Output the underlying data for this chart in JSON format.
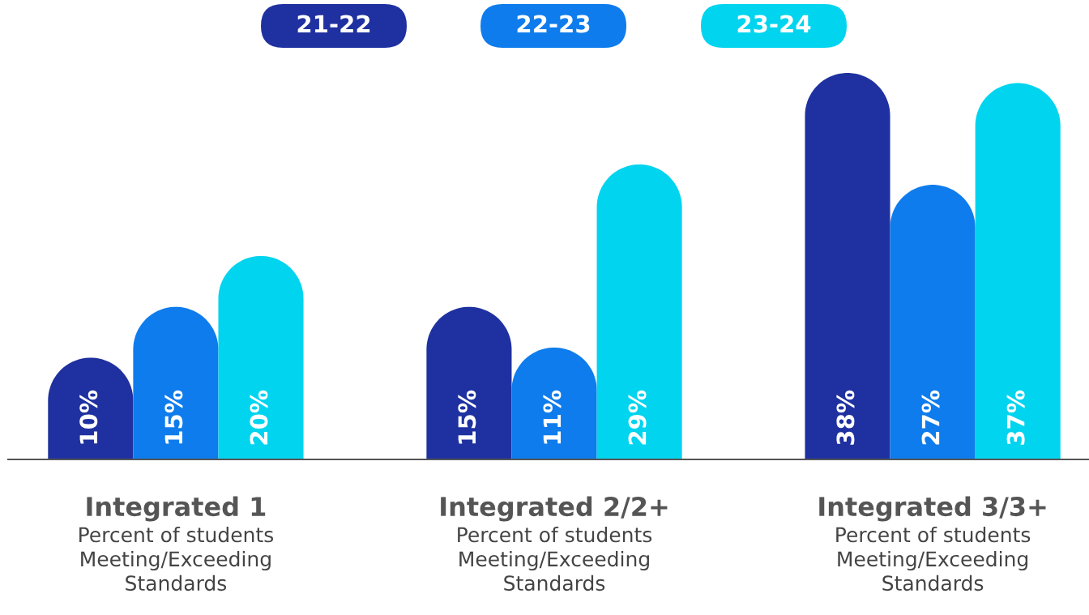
{
  "chart_data": {
    "type": "bar",
    "categories": [
      "Integrated 1\nPercent of students\nMeeting/Exceeding\nStandards",
      "Integrated 2/2+\nPercent of students\nMeeting/Exceeding\nStandards",
      "Integrated 3/3+\nPercent of students\nMeeting/Exceeding\nStandards"
    ],
    "series": [
      {
        "name": "21-22",
        "color": "#1f31a0",
        "values": [
          10,
          15,
          38
        ],
        "value_labels": [
          "10%",
          "15%",
          "38%"
        ]
      },
      {
        "name": "22-23",
        "color": "#0e7cec",
        "values": [
          15,
          11,
          27
        ],
        "value_labels": [
          "15%",
          "11%",
          "27%"
        ]
      },
      {
        "name": "23-24",
        "color": "#00d4ef",
        "values": [
          20,
          29,
          37
        ],
        "value_labels": [
          "20%",
          "29%",
          "37%"
        ]
      }
    ],
    "legend": "top"
  }
}
